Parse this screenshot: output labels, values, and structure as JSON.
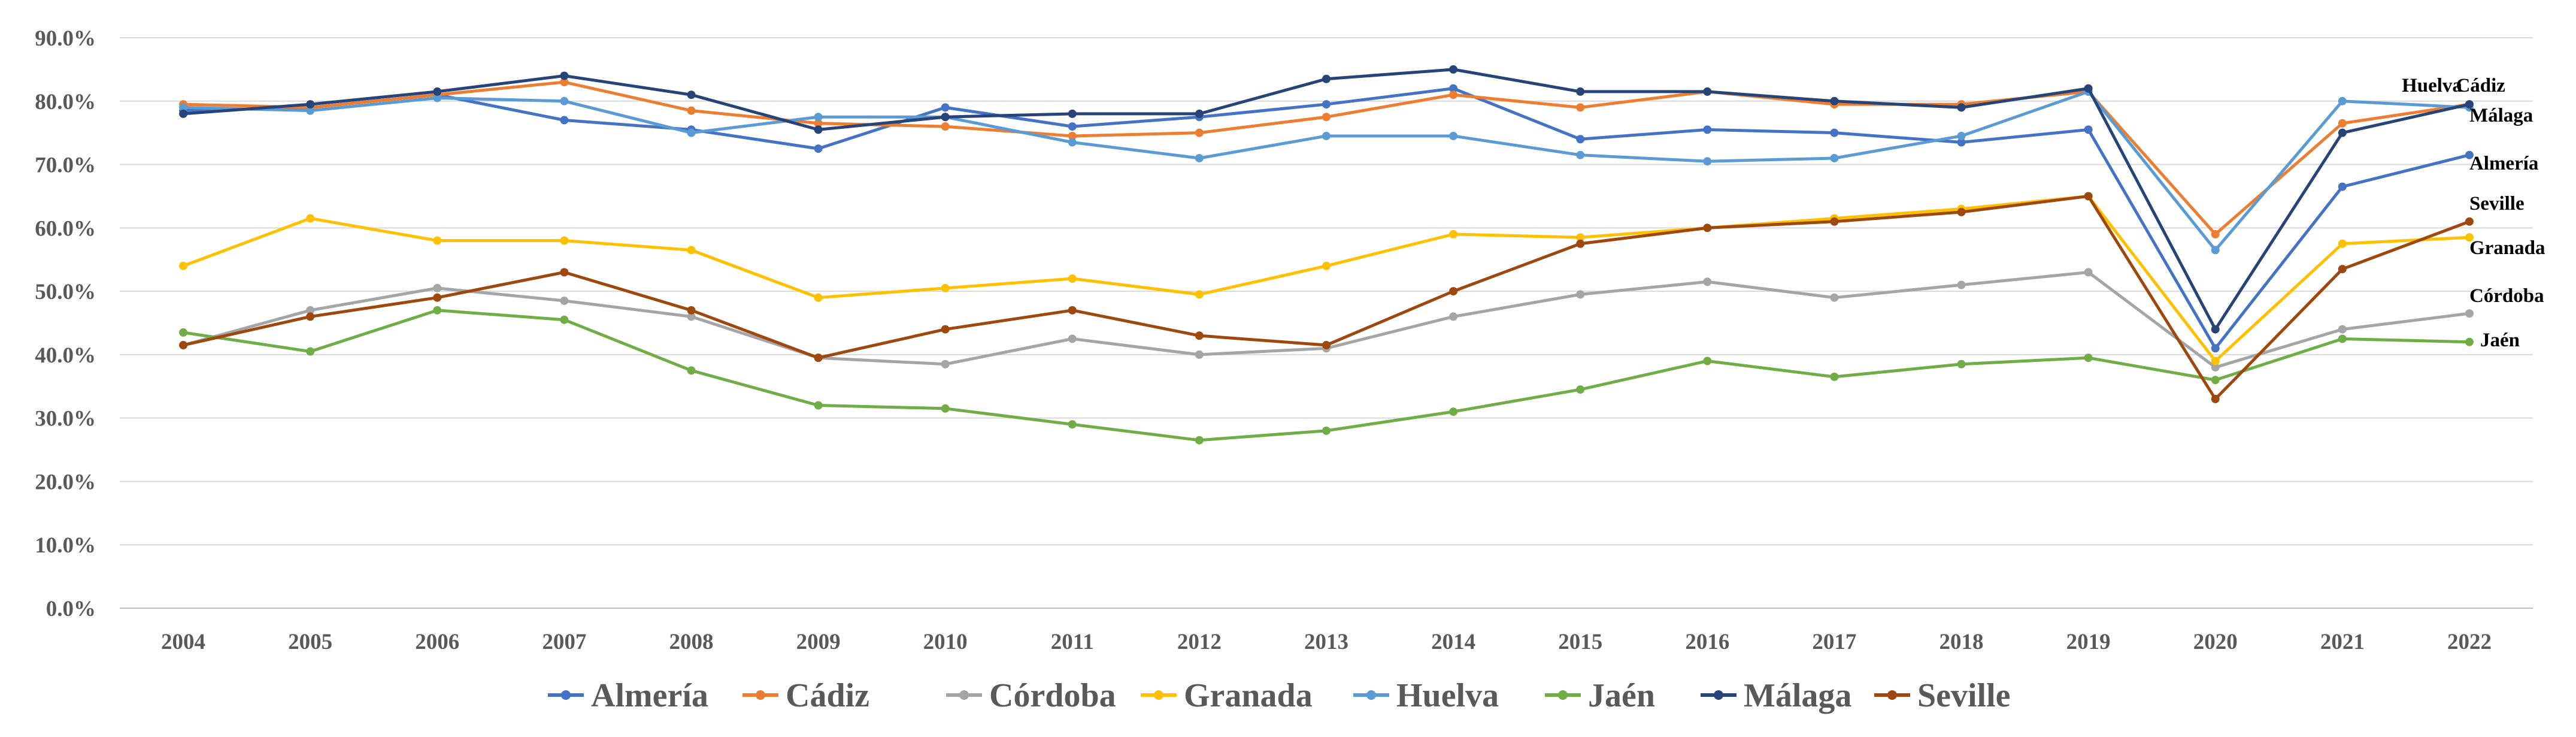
{
  "chart_data": {
    "type": "line",
    "title": "",
    "xlabel": "",
    "ylabel": "",
    "ylim": [
      0,
      90
    ],
    "y_ticks": [
      "0.0%",
      "10.0%",
      "20.0%",
      "30.0%",
      "40.0%",
      "50.0%",
      "60.0%",
      "70.0%",
      "80.0%",
      "90.0%"
    ],
    "categories": [
      "2004",
      "2005",
      "2006",
      "2007",
      "2008",
      "2009",
      "2010",
      "2011",
      "2012",
      "2013",
      "2014",
      "2015",
      "2016",
      "2017",
      "2018",
      "2019",
      "2020",
      "2021",
      "2022"
    ],
    "legend_position": "bottom",
    "grid": true,
    "series": [
      {
        "name": "Almería",
        "color": "#4472C4",
        "end_label": "Almería",
        "values": [
          78.5,
          79.0,
          81.0,
          77.0,
          75.5,
          72.5,
          79.0,
          76.0,
          77.5,
          79.5,
          82.0,
          74.0,
          75.5,
          75.0,
          73.5,
          75.5,
          41.0,
          66.5,
          71.5
        ]
      },
      {
        "name": "Cádiz",
        "color": "#ED7D31",
        "end_label": "Cádiz",
        "values": [
          79.5,
          79.0,
          81.0,
          83.0,
          78.5,
          76.5,
          76.0,
          74.5,
          75.0,
          77.5,
          81.0,
          79.0,
          81.5,
          79.5,
          79.5,
          81.5,
          59.0,
          76.5,
          79.5
        ]
      },
      {
        "name": "Córdoba",
        "color": "#A5A5A5",
        "end_label": "Córdoba",
        "values": [
          41.5,
          47.0,
          50.5,
          48.5,
          46.0,
          39.5,
          38.5,
          42.5,
          40.0,
          41.0,
          46.0,
          49.5,
          51.5,
          49.0,
          51.0,
          53.0,
          38.0,
          44.0,
          46.5
        ]
      },
      {
        "name": "Granada",
        "color": "#FFC000",
        "end_label": "Granada",
        "values": [
          54.0,
          61.5,
          58.0,
          58.0,
          56.5,
          49.0,
          50.5,
          52.0,
          49.5,
          54.0,
          59.0,
          58.5,
          60.0,
          61.5,
          63.0,
          65.0,
          39.0,
          57.5,
          58.5
        ]
      },
      {
        "name": "Huelva",
        "color": "#5B9BD5",
        "end_label": "Huelva",
        "values": [
          79.0,
          78.5,
          80.5,
          80.0,
          75.0,
          77.5,
          77.5,
          73.5,
          71.0,
          74.5,
          74.5,
          71.5,
          70.5,
          71.0,
          74.5,
          81.5,
          56.5,
          80.0,
          79.0
        ]
      },
      {
        "name": "Jaén",
        "color": "#70AD47",
        "end_label": "Jaén",
        "values": [
          43.5,
          40.5,
          47.0,
          45.5,
          37.5,
          32.0,
          31.5,
          29.0,
          26.5,
          28.0,
          31.0,
          34.5,
          39.0,
          36.5,
          38.5,
          39.5,
          36.0,
          42.5,
          42.0
        ]
      },
      {
        "name": "Málaga",
        "color": "#264478",
        "end_label": "Málaga",
        "values": [
          78.0,
          79.5,
          81.5,
          84.0,
          81.0,
          75.5,
          77.5,
          78.0,
          78.0,
          83.5,
          85.0,
          81.5,
          81.5,
          80.0,
          79.0,
          82.0,
          44.0,
          75.0,
          79.5
        ]
      },
      {
        "name": "Seville",
        "color": "#9E480E",
        "end_label": "Seville",
        "values": [
          41.5,
          46.0,
          49.0,
          53.0,
          47.0,
          39.5,
          44.0,
          47.0,
          43.0,
          41.5,
          50.0,
          57.5,
          60.0,
          61.0,
          62.5,
          65.0,
          33.0,
          53.5,
          61.0
        ]
      }
    ]
  }
}
